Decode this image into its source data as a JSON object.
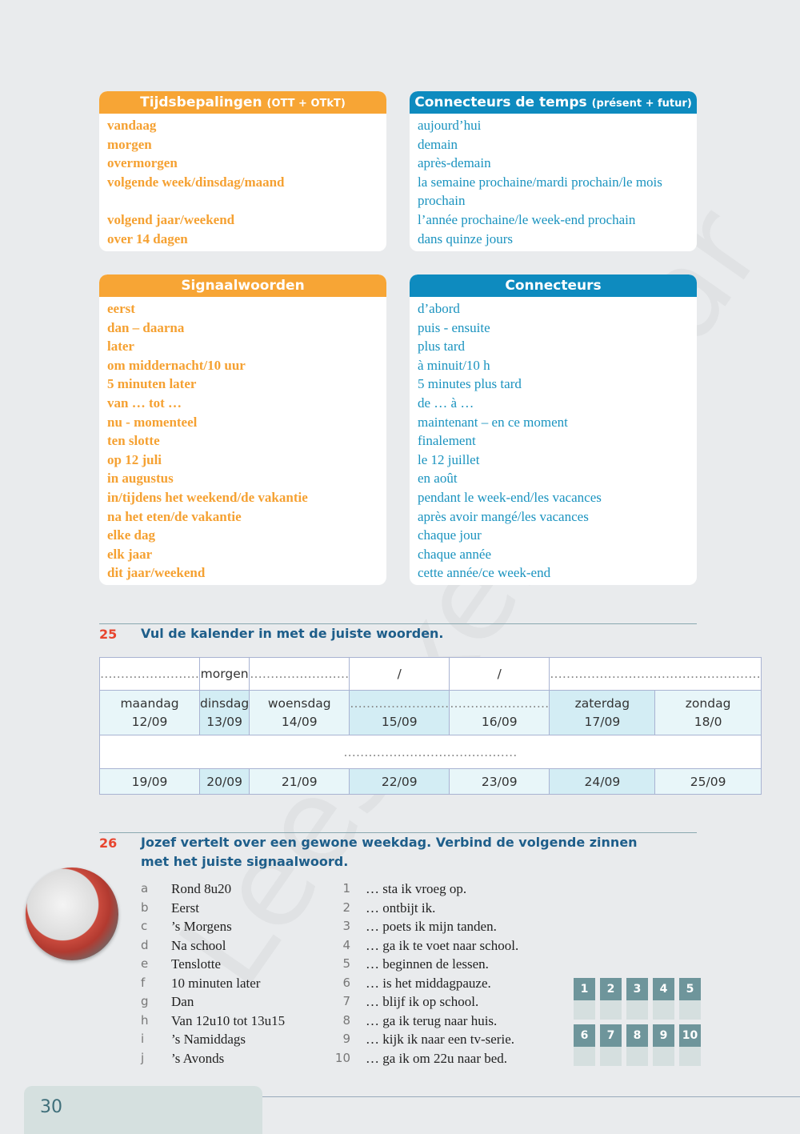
{
  "watermark": "Leesexemplaar",
  "box1": {
    "title": "Tijdsbepalingen",
    "sub": "(OTT + OTkT)",
    "items": [
      "vandaag",
      "morgen",
      "overmorgen",
      "volgende week/dinsdag/maand",
      "volgend jaar/weekend",
      "over 14 dagen"
    ]
  },
  "box2": {
    "title": "Connecteurs de temps",
    "sub": "(présent + futur)",
    "items": [
      "aujourd’hui",
      "demain",
      "après-demain",
      "la semaine prochaine/mardi prochain/le mois prochain",
      "l’année prochaine/le week-end prochain",
      "dans quinze jours"
    ]
  },
  "box3": {
    "title": "Signaalwoorden",
    "items": [
      "eerst",
      "dan – daarna",
      "later",
      "om middernacht/10 uur",
      "5 minuten later",
      "van … tot …",
      "nu - momenteel",
      "ten slotte",
      "op 12 juli",
      "in augustus",
      "in/tijdens het weekend/de vakantie",
      "na het eten/de vakantie",
      "elke dag",
      "elk jaar",
      "dit jaar/weekend"
    ]
  },
  "box4": {
    "title": "Connecteurs",
    "items": [
      "d’abord",
      "puis - ensuite",
      "plus tard",
      "à minuit/10 h",
      "5 minutes plus tard",
      "de … à …",
      "maintenant – en ce moment",
      "finalement",
      "le 12 juillet",
      "en août",
      "pendant le week-end/les vacances",
      "après avoir mangé/les vacances",
      "chaque jour",
      "chaque année",
      "cette année/ce week-end"
    ]
  },
  "ex25": {
    "num": "25",
    "title": "Vul de kalender in met de juiste woorden.",
    "row1": [
      "……………………",
      "morgen",
      "……………………",
      "/",
      "/",
      "……………………………………………"
    ],
    "days": [
      [
        "maandag",
        "12/09"
      ],
      [
        "dinsdag",
        "13/09"
      ],
      [
        "woensdag",
        "14/09"
      ],
      [
        "……………………",
        "15/09"
      ],
      [
        "……………………",
        "16/09"
      ],
      [
        "zaterdag",
        "17/09"
      ],
      [
        "zondag",
        "18/0"
      ]
    ],
    "row3": "……………………………………",
    "dates": [
      "19/09",
      "20/09",
      "21/09",
      "22/09",
      "23/09",
      "24/09",
      "25/09"
    ]
  },
  "ex26": {
    "num": "26",
    "title": "Jozef vertelt over een gewone weekdag. Verbind de volgende zinnen met het juiste signaalwoord.",
    "letters": [
      "a",
      "b",
      "c",
      "d",
      "e",
      "f",
      "g",
      "h",
      "i",
      "j"
    ],
    "phrases": [
      "Rond 8u20",
      "Eerst",
      "’s Morgens",
      "Na school",
      "Tenslotte",
      "10 minuten later",
      "Dan",
      "Van 12u10 tot 13u15",
      "’s Namiddags",
      "’s Avonds"
    ],
    "numbers": [
      "1",
      "2",
      "3",
      "4",
      "5",
      "6",
      "7",
      "8",
      "9",
      "10"
    ],
    "sentences": [
      "… sta ik vroeg op.",
      "… ontbijt ik.",
      "… poets ik mijn tanden.",
      "… ga ik te voet naar school.",
      "… beginnen de lessen.",
      "… is het middagpauze.",
      "… blijf ik op school.",
      "… ga ik terug naar huis.",
      "… kijk ik naar een tv-serie.",
      "… ga ik om 22u naar bed."
    ],
    "answer_labels": [
      "1",
      "2",
      "3",
      "4",
      "5",
      "6",
      "7",
      "8",
      "9",
      "10"
    ]
  },
  "page_number": "30"
}
